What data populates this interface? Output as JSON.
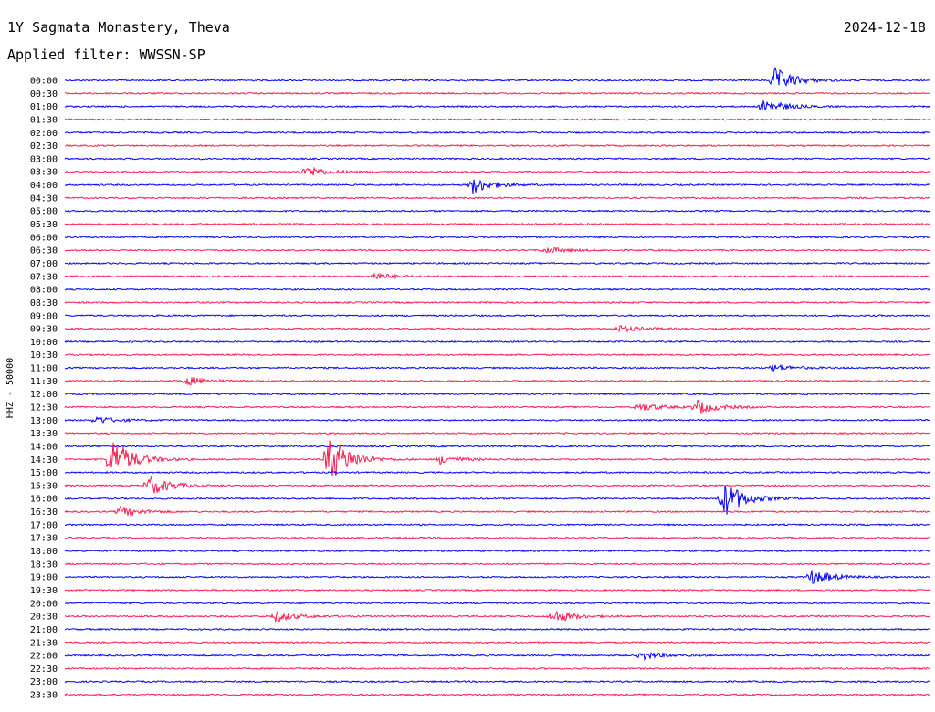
{
  "header": {
    "station": "1Y Sagmata Monastery, Theva",
    "date": "2024-12-18",
    "filter": "Applied filter: WWSSN-SP"
  },
  "chart_data": {
    "type": "line",
    "title": "1Y Sagmata Monastery, Theva",
    "ylabel": "HHZ - 50000",
    "grid": false,
    "colors": [
      "#0000ff",
      "#ff1a4d"
    ],
    "rows": [
      "00:00",
      "00:30",
      "01:00",
      "01:30",
      "02:00",
      "02:30",
      "03:00",
      "03:30",
      "04:00",
      "04:30",
      "05:00",
      "05:30",
      "06:00",
      "06:30",
      "07:00",
      "07:30",
      "08:00",
      "08:30",
      "09:00",
      "09:30",
      "10:00",
      "10:30",
      "11:00",
      "11:30",
      "12:00",
      "12:30",
      "13:00",
      "13:30",
      "14:00",
      "14:30",
      "15:00",
      "15:30",
      "16:00",
      "16:30",
      "17:00",
      "17:30",
      "18:00",
      "18:30",
      "19:00",
      "19:30",
      "20:00",
      "20:30",
      "21:00",
      "21:30",
      "22:00",
      "22:30",
      "23:00",
      "23:30"
    ],
    "row_minutes": 30,
    "events": [
      {
        "row": "00:00",
        "minute": 24.6,
        "amplitude": 14
      },
      {
        "row": "01:00",
        "minute": 24.2,
        "amplitude": 9
      },
      {
        "row": "03:30",
        "minute": 8.3,
        "amplitude": 7
      },
      {
        "row": "04:00",
        "minute": 14.1,
        "amplitude": 10
      },
      {
        "row": "06:30",
        "minute": 16.6,
        "amplitude": 4
      },
      {
        "row": "07:30",
        "minute": 10.7,
        "amplitude": 4
      },
      {
        "row": "09:30",
        "minute": 19.2,
        "amplitude": 4
      },
      {
        "row": "11:00",
        "minute": 24.5,
        "amplitude": 4
      },
      {
        "row": "11:30",
        "minute": 4.2,
        "amplitude": 5
      },
      {
        "row": "12:30",
        "minute": 19.9,
        "amplitude": 5
      },
      {
        "row": "12:30",
        "minute": 21.9,
        "amplitude": 8
      },
      {
        "row": "13:00",
        "minute": 1.1,
        "amplitude": 4
      },
      {
        "row": "14:30",
        "minute": 1.6,
        "amplitude": 25
      },
      {
        "row": "14:30",
        "minute": 9.1,
        "amplitude": 32
      },
      {
        "row": "14:30",
        "minute": 13.0,
        "amplitude": 5
      },
      {
        "row": "15:30",
        "minute": 2.9,
        "amplitude": 12
      },
      {
        "row": "16:00",
        "minute": 22.8,
        "amplitude": 22
      },
      {
        "row": "16:30",
        "minute": 1.9,
        "amplitude": 6
      },
      {
        "row": "19:00",
        "minute": 25.9,
        "amplitude": 9
      },
      {
        "row": "20:30",
        "minute": 7.3,
        "amplitude": 6
      },
      {
        "row": "20:30",
        "minute": 16.9,
        "amplitude": 8
      },
      {
        "row": "22:00",
        "minute": 20.0,
        "amplitude": 5
      }
    ]
  }
}
